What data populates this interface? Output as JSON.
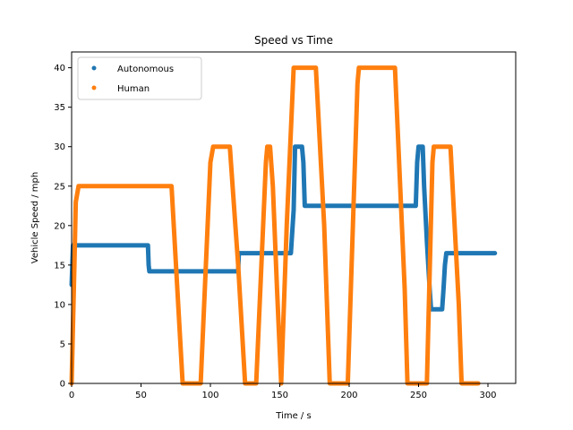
{
  "chart_data": {
    "type": "scatter",
    "title": "Speed vs Time",
    "xlabel": "Time / s",
    "ylabel": "Vehicle Speed / mph",
    "xlim": [
      0,
      320
    ],
    "ylim": [
      0,
      42
    ],
    "xticks": [
      0,
      50,
      100,
      150,
      200,
      250,
      300
    ],
    "yticks": [
      0,
      5,
      10,
      15,
      20,
      25,
      30,
      35,
      40
    ],
    "grid": false,
    "legend_position": "top-left",
    "series": [
      {
        "name": "Autonomous",
        "color": "#1f77b4",
        "points": [
          [
            0,
            12.5
          ],
          [
            0.5,
            15
          ],
          [
            1,
            17.5
          ],
          [
            55,
            17.5
          ],
          [
            55.5,
            15
          ],
          [
            56,
            14.2
          ],
          [
            120,
            14.2
          ],
          [
            120.5,
            16.5
          ],
          [
            150,
            16.5
          ],
          [
            158,
            16.5
          ],
          [
            160,
            22
          ],
          [
            161,
            30
          ],
          [
            166,
            30
          ],
          [
            167,
            28
          ],
          [
            168,
            22.5
          ],
          [
            248,
            22.5
          ],
          [
            249,
            28
          ],
          [
            250,
            30
          ],
          [
            253,
            30
          ],
          [
            254,
            25
          ],
          [
            256,
            18
          ],
          [
            258,
            12
          ],
          [
            259,
            9.4
          ],
          [
            267,
            9.4
          ],
          [
            268,
            12
          ],
          [
            269,
            15
          ],
          [
            270,
            16.5
          ],
          [
            305,
            16.5
          ]
        ]
      },
      {
        "name": "Human",
        "color": "#ff7f0e",
        "points": [
          [
            0,
            0
          ],
          [
            2,
            15
          ],
          [
            3,
            23
          ],
          [
            5,
            25
          ],
          [
            72,
            25
          ],
          [
            80,
            0
          ],
          [
            93,
            0
          ],
          [
            100,
            28
          ],
          [
            102,
            30
          ],
          [
            114,
            30
          ],
          [
            120,
            15
          ],
          [
            125,
            0
          ],
          [
            133,
            0
          ],
          [
            140,
            28
          ],
          [
            141,
            30
          ],
          [
            143,
            30
          ],
          [
            145,
            25
          ],
          [
            148,
            12
          ],
          [
            151,
            0
          ],
          [
            153,
            10
          ],
          [
            155,
            20
          ],
          [
            157,
            28
          ],
          [
            160,
            40
          ],
          [
            176,
            40
          ],
          [
            182,
            20
          ],
          [
            186,
            0
          ],
          [
            199,
            0
          ],
          [
            206,
            38
          ],
          [
            207,
            40
          ],
          [
            233,
            40
          ],
          [
            240,
            12
          ],
          [
            242,
            0
          ],
          [
            256,
            0
          ],
          [
            260,
            28
          ],
          [
            261,
            30
          ],
          [
            273,
            30
          ],
          [
            279,
            10
          ],
          [
            281,
            0
          ],
          [
            293,
            0
          ]
        ]
      }
    ]
  }
}
